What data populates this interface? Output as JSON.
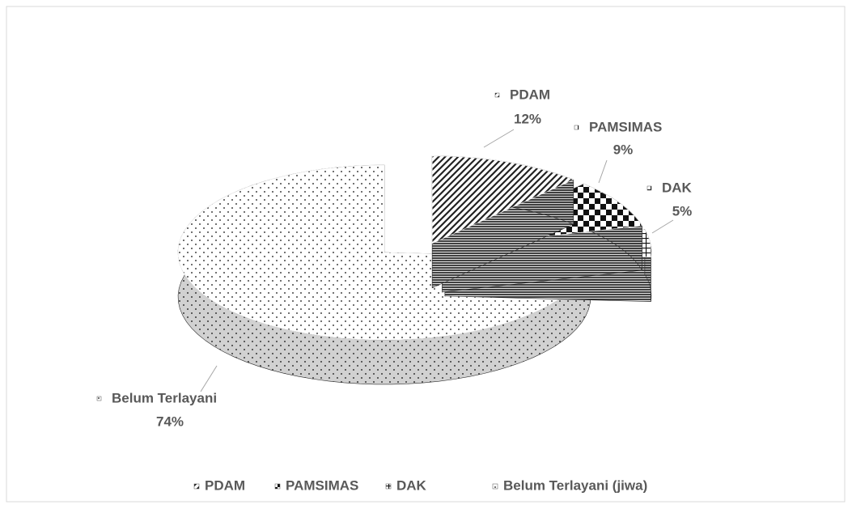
{
  "chart_data": {
    "type": "pie3d",
    "categories": [
      "PDAM",
      "PAMSIMAS",
      "DAK",
      "Belum Terlayani"
    ],
    "values": [
      12,
      9,
      5,
      74
    ],
    "value_labels": [
      "12%",
      "9%",
      "5%",
      "74%"
    ],
    "legend": [
      "PDAM",
      "PAMSIMAS",
      "DAK",
      "Belum Terlayani (jiwa)"
    ]
  }
}
